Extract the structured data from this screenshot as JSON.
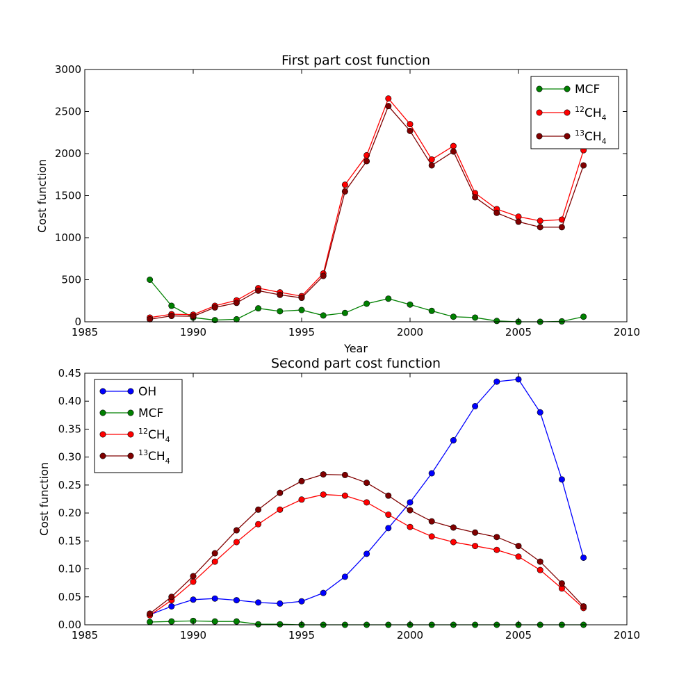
{
  "chart_data": [
    {
      "type": "line",
      "title": "First part cost function",
      "xlabel": "Year",
      "ylabel": "Cost function",
      "xlim": [
        1985,
        2010
      ],
      "ylim": [
        0,
        3000
      ],
      "xticks": [
        "1985",
        "1990",
        "1995",
        "2000",
        "2005",
        "2010"
      ],
      "yticks": [
        "0",
        "500",
        "1000",
        "1500",
        "2000",
        "2500",
        "3000"
      ],
      "legend_position": "upper-right",
      "x": [
        1988,
        1989,
        1990,
        1991,
        1992,
        1993,
        1994,
        1995,
        1996,
        1997,
        1998,
        1999,
        2000,
        2001,
        2002,
        2003,
        2004,
        2005,
        2006,
        2007,
        2008
      ],
      "series": [
        {
          "name": "MCF",
          "sup": "",
          "base": "MCF",
          "sub": "",
          "color": "#008000",
          "values": [
            500,
            190,
            50,
            20,
            30,
            160,
            125,
            140,
            75,
            105,
            215,
            275,
            205,
            130,
            60,
            50,
            10,
            0,
            0,
            5,
            60
          ]
        },
        {
          "name": "12CH4",
          "sup": "12",
          "base": "CH",
          "sub": "4",
          "color": "#ff0000",
          "values": [
            50,
            90,
            85,
            190,
            255,
            400,
            350,
            305,
            575,
            1630,
            1980,
            2655,
            2350,
            1930,
            2090,
            1530,
            1340,
            1250,
            1200,
            1215,
            2040
          ]
        },
        {
          "name": "13CH4",
          "sup": "13",
          "base": "CH",
          "sub": "4",
          "color": "#800000",
          "values": [
            30,
            70,
            65,
            170,
            225,
            370,
            320,
            285,
            545,
            1550,
            1910,
            2565,
            2270,
            1860,
            2025,
            1480,
            1295,
            1190,
            1125,
            1125,
            1860
          ]
        }
      ]
    },
    {
      "type": "line",
      "title": "Second part cost function",
      "xlabel": "",
      "ylabel": "Cost function",
      "xlim": [
        1985,
        2010
      ],
      "ylim": [
        0,
        0.45
      ],
      "xticks": [
        "1985",
        "1990",
        "1995",
        "2000",
        "2005",
        "2010"
      ],
      "yticks": [
        "0.00",
        "0.05",
        "0.10",
        "0.15",
        "0.20",
        "0.25",
        "0.30",
        "0.35",
        "0.40",
        "0.45"
      ],
      "legend_position": "upper-left",
      "x": [
        1988,
        1989,
        1990,
        1991,
        1992,
        1993,
        1994,
        1995,
        1996,
        1997,
        1998,
        1999,
        2000,
        2001,
        2002,
        2003,
        2004,
        2005,
        2006,
        2007,
        2008
      ],
      "series": [
        {
          "name": "OH",
          "sup": "",
          "base": "OH",
          "sub": "",
          "color": "#0000ff",
          "values": [
            0.018,
            0.033,
            0.045,
            0.047,
            0.044,
            0.04,
            0.038,
            0.042,
            0.057,
            0.086,
            0.127,
            0.173,
            0.219,
            0.271,
            0.33,
            0.391,
            0.435,
            0.439,
            0.38,
            0.26,
            0.12
          ]
        },
        {
          "name": "MCF",
          "sup": "",
          "base": "MCF",
          "sub": "",
          "color": "#008000",
          "values": [
            0.005,
            0.006,
            0.007,
            0.006,
            0.006,
            0.001,
            0.001,
            0.0,
            0.0,
            0.0,
            0.0,
            0.0,
            0.0,
            0.0,
            0.0,
            0.0,
            0.0,
            0.0,
            0.0,
            0.0,
            0.0
          ]
        },
        {
          "name": "12CH4",
          "sup": "12",
          "base": "CH",
          "sub": "4",
          "color": "#ff0000",
          "values": [
            0.017,
            0.044,
            0.077,
            0.113,
            0.148,
            0.18,
            0.206,
            0.224,
            0.233,
            0.231,
            0.219,
            0.197,
            0.175,
            0.158,
            0.148,
            0.141,
            0.134,
            0.122,
            0.098,
            0.065,
            0.03
          ]
        },
        {
          "name": "13CH4",
          "sup": "13",
          "base": "CH",
          "sub": "4",
          "color": "#800000",
          "values": [
            0.02,
            0.05,
            0.087,
            0.128,
            0.169,
            0.206,
            0.236,
            0.257,
            0.269,
            0.268,
            0.254,
            0.231,
            0.205,
            0.185,
            0.174,
            0.165,
            0.157,
            0.141,
            0.113,
            0.074,
            0.033
          ]
        }
      ]
    }
  ]
}
